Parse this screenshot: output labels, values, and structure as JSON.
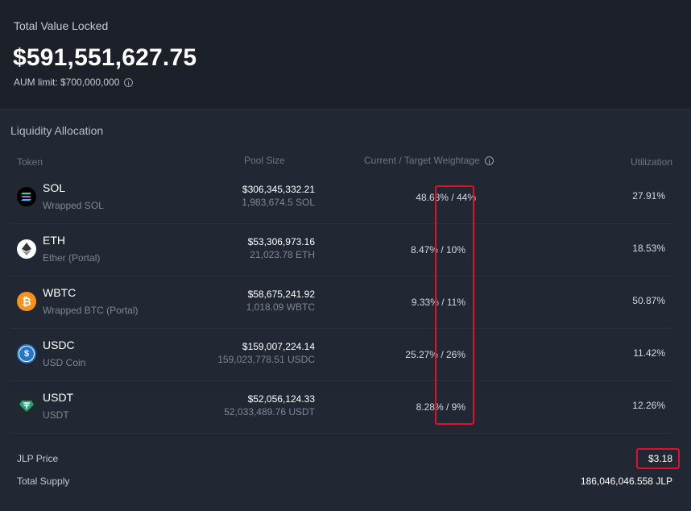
{
  "tvl": {
    "label": "Total Value Locked",
    "value": "$591,551,627.75",
    "aum_limit": "AUM limit: $700,000,000"
  },
  "allocation": {
    "title": "Liquidity Allocation",
    "headers": {
      "token": "Token",
      "pool_size": "Pool Size",
      "weightage": "Current / Target Weightage",
      "utilization": "Utilization"
    },
    "rows": [
      {
        "symbol": "SOL",
        "name": "Wrapped SOL",
        "pool_usd": "$306,345,332.21",
        "pool_amount": "1,983,674.5 SOL",
        "weightage": "48.68% / 44%",
        "utilization": "27.91%",
        "icon": "sol-icon",
        "icon_color": "#000000"
      },
      {
        "symbol": "ETH",
        "name": "Ether (Portal)",
        "pool_usd": "$53,306,973.16",
        "pool_amount": "21,023.78 ETH",
        "weightage": "8.47% / 10%",
        "utilization": "18.53%",
        "icon": "eth-icon",
        "icon_color": "#ffffff"
      },
      {
        "symbol": "WBTC",
        "name": "Wrapped BTC (Portal)",
        "pool_usd": "$58,675,241.92",
        "pool_amount": "1,018.09 WBTC",
        "weightage": "9.33% / 11%",
        "utilization": "50.87%",
        "icon": "btc-icon",
        "icon_color": "#f7931a"
      },
      {
        "symbol": "USDC",
        "name": "USD Coin",
        "pool_usd": "$159,007,224.14",
        "pool_amount": "159,023,778.51 USDC",
        "weightage": "25.27% / 26%",
        "utilization": "11.42%",
        "icon": "usdc-icon",
        "icon_color": "#2775ca"
      },
      {
        "symbol": "USDT",
        "name": "USDT",
        "pool_usd": "$52,056,124.33",
        "pool_amount": "52,033,489.76 USDT",
        "weightage": "8.28% / 9%",
        "utilization": "12.26%",
        "icon": "usdt-icon",
        "icon_color": "#26a17b"
      }
    ]
  },
  "footer": {
    "jlp_price_label": "JLP Price",
    "jlp_price_value": "$3.18",
    "total_supply_label": "Total Supply",
    "total_supply_value": "186,046,046.558 JLP"
  },
  "colors": {
    "background": "#1c2029",
    "card": "#222833",
    "highlight": "#e0102a"
  }
}
